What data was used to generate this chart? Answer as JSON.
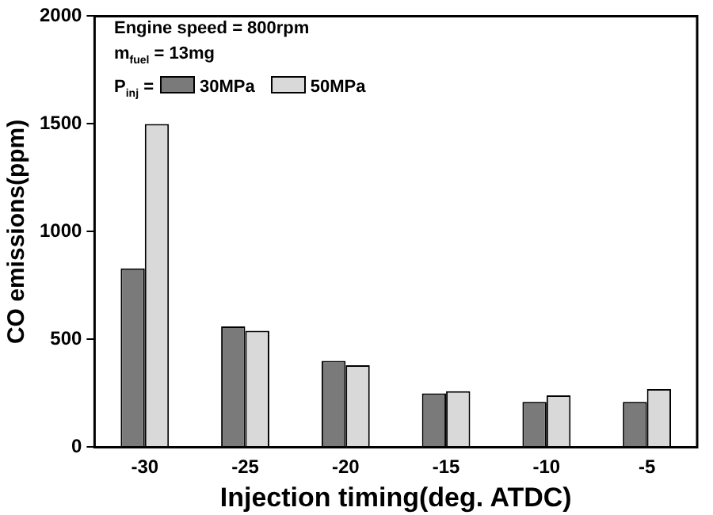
{
  "chart_data": {
    "type": "bar",
    "xlabel": "Injection timing(deg. ATDC)",
    "ylabel": "CO emissions(ppm)",
    "annotations": [
      "Engine speed = 800rpm",
      "m$_{fuel}$ = 13mg"
    ],
    "legend_title": "P$_{inj}$ =",
    "legend": "top left",
    "categories": [
      "-30",
      "-25",
      "-20",
      "-15",
      "-10",
      "-5"
    ],
    "series": [
      {
        "name": "30MPa",
        "color": "#7a7a7a",
        "values": [
          830,
          560,
          400,
          250,
          210,
          210
        ]
      },
      {
        "name": "50MPa",
        "color": "#d9d9d9",
        "values": [
          1500,
          540,
          380,
          260,
          240,
          270
        ]
      }
    ],
    "ylim": [
      0,
      2000
    ],
    "yticks": [
      0,
      500,
      1000,
      1500,
      2000
    ],
    "grid": false
  }
}
